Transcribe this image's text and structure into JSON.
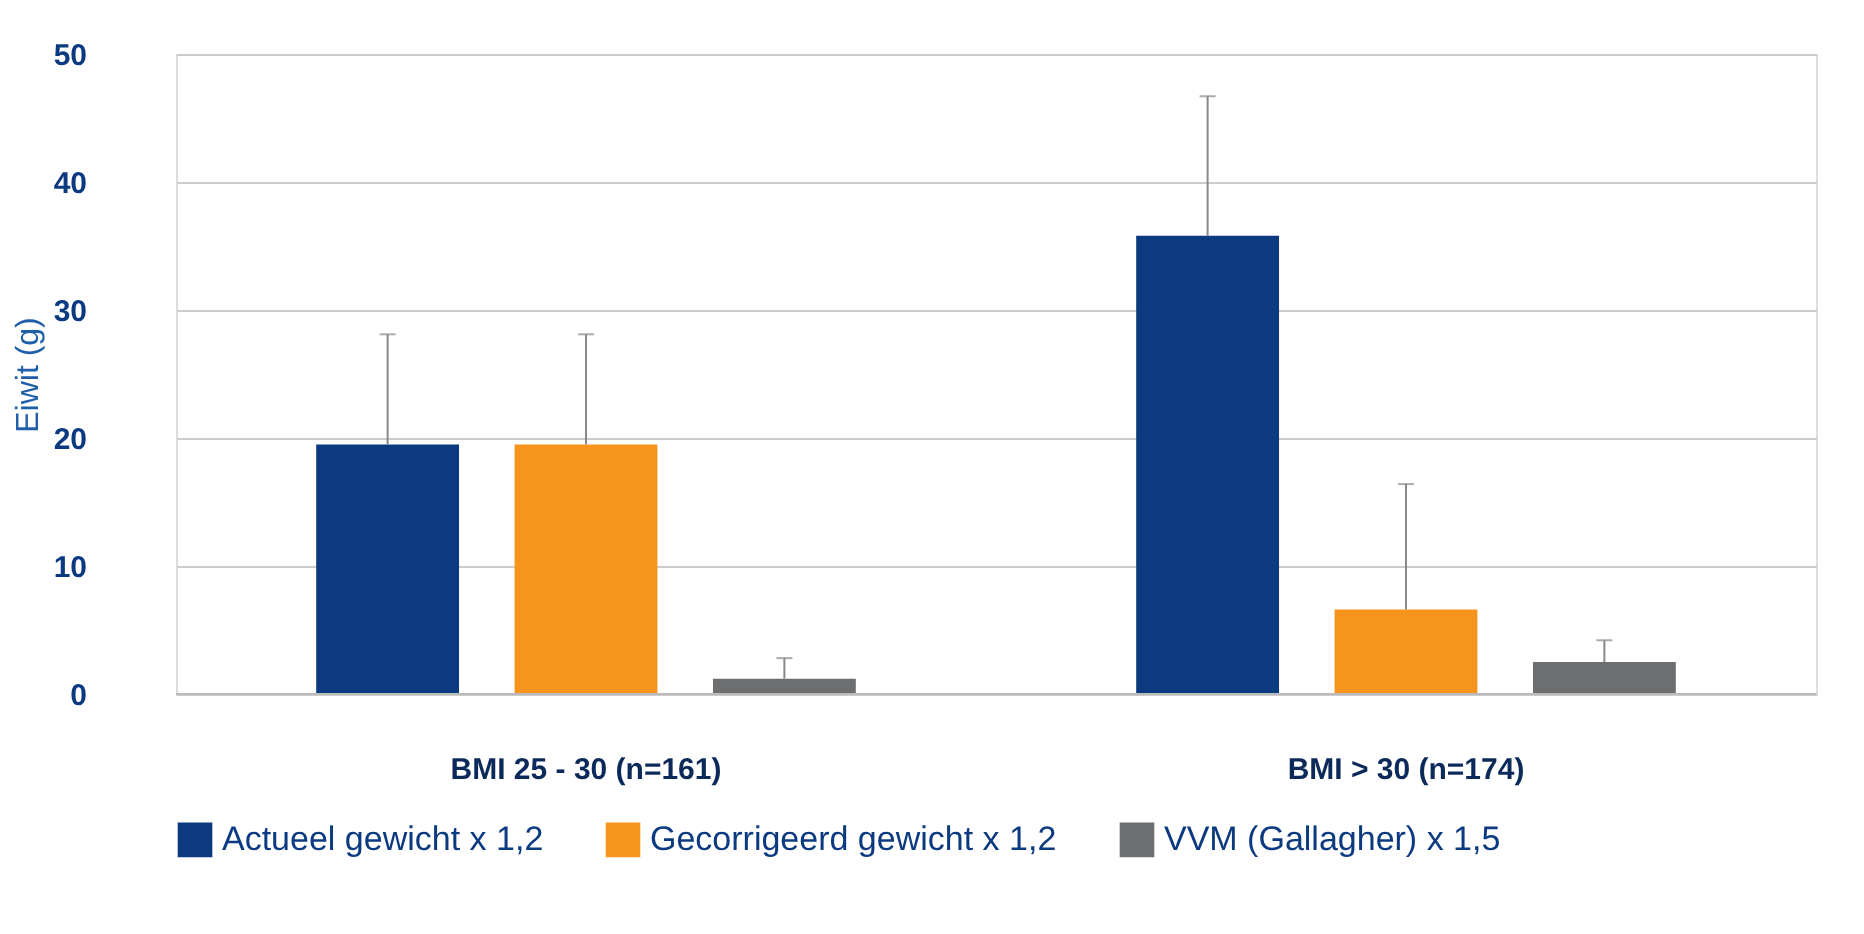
{
  "chart_data": {
    "type": "bar",
    "ylabel": "Eiwit (g)",
    "categories": [
      "BMI 25 - 30 (n=161)",
      "BMI > 30 (n=174)"
    ],
    "series": [
      {
        "name": "Actueel gewicht x 1,2",
        "color": "#0b3a80",
        "values": [
          19.5,
          35.8
        ],
        "errors": [
          [
            19.5,
            28.1
          ],
          [
            35.8,
            46.7
          ]
        ]
      },
      {
        "name": "Gecorrigeerd gewicht x 1,2",
        "color": "#f7941d",
        "values": [
          19.5,
          6.6
        ],
        "errors": [
          [
            19.5,
            28.1
          ],
          [
            6.6,
            16.4
          ]
        ]
      },
      {
        "name": "VVM (Gallagher) x 1,5",
        "color": "#6d6e70",
        "values": [
          1.2,
          2.5
        ],
        "errors": [
          [
            1.2,
            2.8
          ],
          [
            2.5,
            4.2
          ]
        ]
      }
    ],
    "ylim": [
      0,
      50
    ],
    "yticks": [
      0,
      10,
      20,
      30,
      40,
      50
    ],
    "grid": "y",
    "legend": "bottom"
  }
}
